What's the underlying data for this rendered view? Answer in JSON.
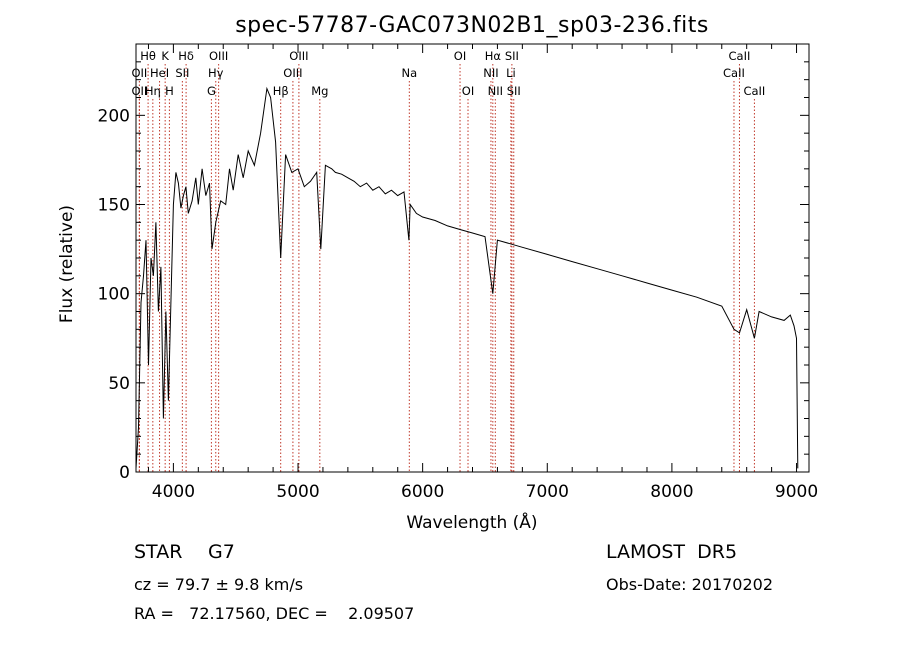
{
  "chart_data": {
    "type": "line",
    "title": "spec-57787-GAC073N02B1_sp03-236.fits",
    "xlabel": "Wavelength (Å)",
    "ylabel": "Flux (relative)",
    "xlim": [
      3700,
      9100
    ],
    "ylim": [
      0,
      240
    ],
    "x_ticks": [
      4000,
      5000,
      6000,
      7000,
      8000,
      9000
    ],
    "y_ticks": [
      0,
      50,
      100,
      150,
      200
    ],
    "grid": false,
    "series": [
      {
        "line_color": "#000000",
        "x": [
          3700,
          3720,
          3740,
          3760,
          3780,
          3800,
          3820,
          3840,
          3860,
          3880,
          3900,
          3920,
          3940,
          3960,
          3980,
          4000,
          4020,
          4040,
          4060,
          4080,
          4100,
          4120,
          4150,
          4180,
          4200,
          4230,
          4260,
          4290,
          4310,
          4340,
          4380,
          4420,
          4450,
          4480,
          4520,
          4560,
          4600,
          4650,
          4700,
          4750,
          4780,
          4820,
          4861,
          4900,
          4950,
          5000,
          5050,
          5100,
          5150,
          5183,
          5220,
          5270,
          5300,
          5350,
          5400,
          5450,
          5500,
          5550,
          5600,
          5650,
          5700,
          5750,
          5800,
          5850,
          5890,
          5900,
          5950,
          6000,
          6100,
          6200,
          6300,
          6400,
          6500,
          6563,
          6600,
          6700,
          6800,
          7000,
          7200,
          7400,
          7600,
          7800,
          8000,
          8200,
          8400,
          8498,
          8542,
          8600,
          8662,
          8700,
          8800,
          8900,
          8950,
          8980,
          9000,
          9010
        ],
        "values": [
          2,
          25,
          95,
          110,
          130,
          60,
          120,
          110,
          140,
          90,
          115,
          30,
          90,
          40,
          95,
          150,
          168,
          162,
          148,
          155,
          160,
          145,
          152,
          165,
          150,
          170,
          155,
          162,
          125,
          140,
          152,
          150,
          170,
          158,
          178,
          165,
          180,
          172,
          190,
          215,
          210,
          185,
          120,
          178,
          168,
          170,
          160,
          163,
          168,
          125,
          172,
          170,
          168,
          167,
          165,
          163,
          160,
          162,
          158,
          160,
          156,
          158,
          155,
          157,
          130,
          150,
          145,
          143,
          141,
          138,
          136,
          134,
          132,
          100,
          130,
          128,
          126,
          122,
          118,
          114,
          110,
          106,
          102,
          98,
          93,
          80,
          78,
          91,
          75,
          90,
          87,
          85,
          88,
          82,
          75,
          2
        ]
      }
    ],
    "spectral_lines": [
      {
        "name": "Hθ",
        "x": 3797,
        "row": 1
      },
      {
        "name": "OII",
        "x": 3727,
        "row": 2
      },
      {
        "name": "OII",
        "x": 3727,
        "row": 3
      },
      {
        "name": "K",
        "x": 3934,
        "row": 1
      },
      {
        "name": "HeI",
        "x": 3889,
        "row": 2
      },
      {
        "name": "Hη",
        "x": 3835,
        "row": 3
      },
      {
        "name": "H",
        "x": 3968,
        "row": 3
      },
      {
        "name": "Hδ",
        "x": 4102,
        "row": 1
      },
      {
        "name": "SII",
        "x": 4072,
        "row": 2
      },
      {
        "name": "OIII",
        "x": 4363,
        "row": 1
      },
      {
        "name": "Hγ",
        "x": 4340,
        "row": 2
      },
      {
        "name": "G",
        "x": 4305,
        "row": 3
      },
      {
        "name": "Hβ",
        "x": 4861,
        "row": 3
      },
      {
        "name": "OIII",
        "x": 5007,
        "row": 1
      },
      {
        "name": "OIII",
        "x": 4959,
        "row": 2
      },
      {
        "name": "Mg",
        "x": 5175,
        "row": 3
      },
      {
        "name": "Na",
        "x": 5893,
        "row": 2
      },
      {
        "name": "OI",
        "x": 6300,
        "row": 1
      },
      {
        "name": "OI",
        "x": 6364,
        "row": 3
      },
      {
        "name": "Hα",
        "x": 6563,
        "row": 1
      },
      {
        "name": "NII",
        "x": 6548,
        "row": 2
      },
      {
        "name": "NII",
        "x": 6583,
        "row": 3
      },
      {
        "name": "SII",
        "x": 6716,
        "row": 1
      },
      {
        "name": "Li",
        "x": 6708,
        "row": 2
      },
      {
        "name": "SII",
        "x": 6731,
        "row": 3
      },
      {
        "name": "CaII",
        "x": 8542,
        "row": 1
      },
      {
        "name": "CaII",
        "x": 8498,
        "row": 2
      },
      {
        "name": "CaII",
        "x": 8662,
        "row": 3
      }
    ]
  },
  "info": {
    "object_class": "STAR",
    "subclass": "G7",
    "survey": "LAMOST  DR5",
    "redshift": "cz = 79.7 ± 9.8 km/s",
    "obs_date": "Obs-Date: 20170202",
    "coords": "RA =   72.17560, DEC =    2.09507"
  }
}
